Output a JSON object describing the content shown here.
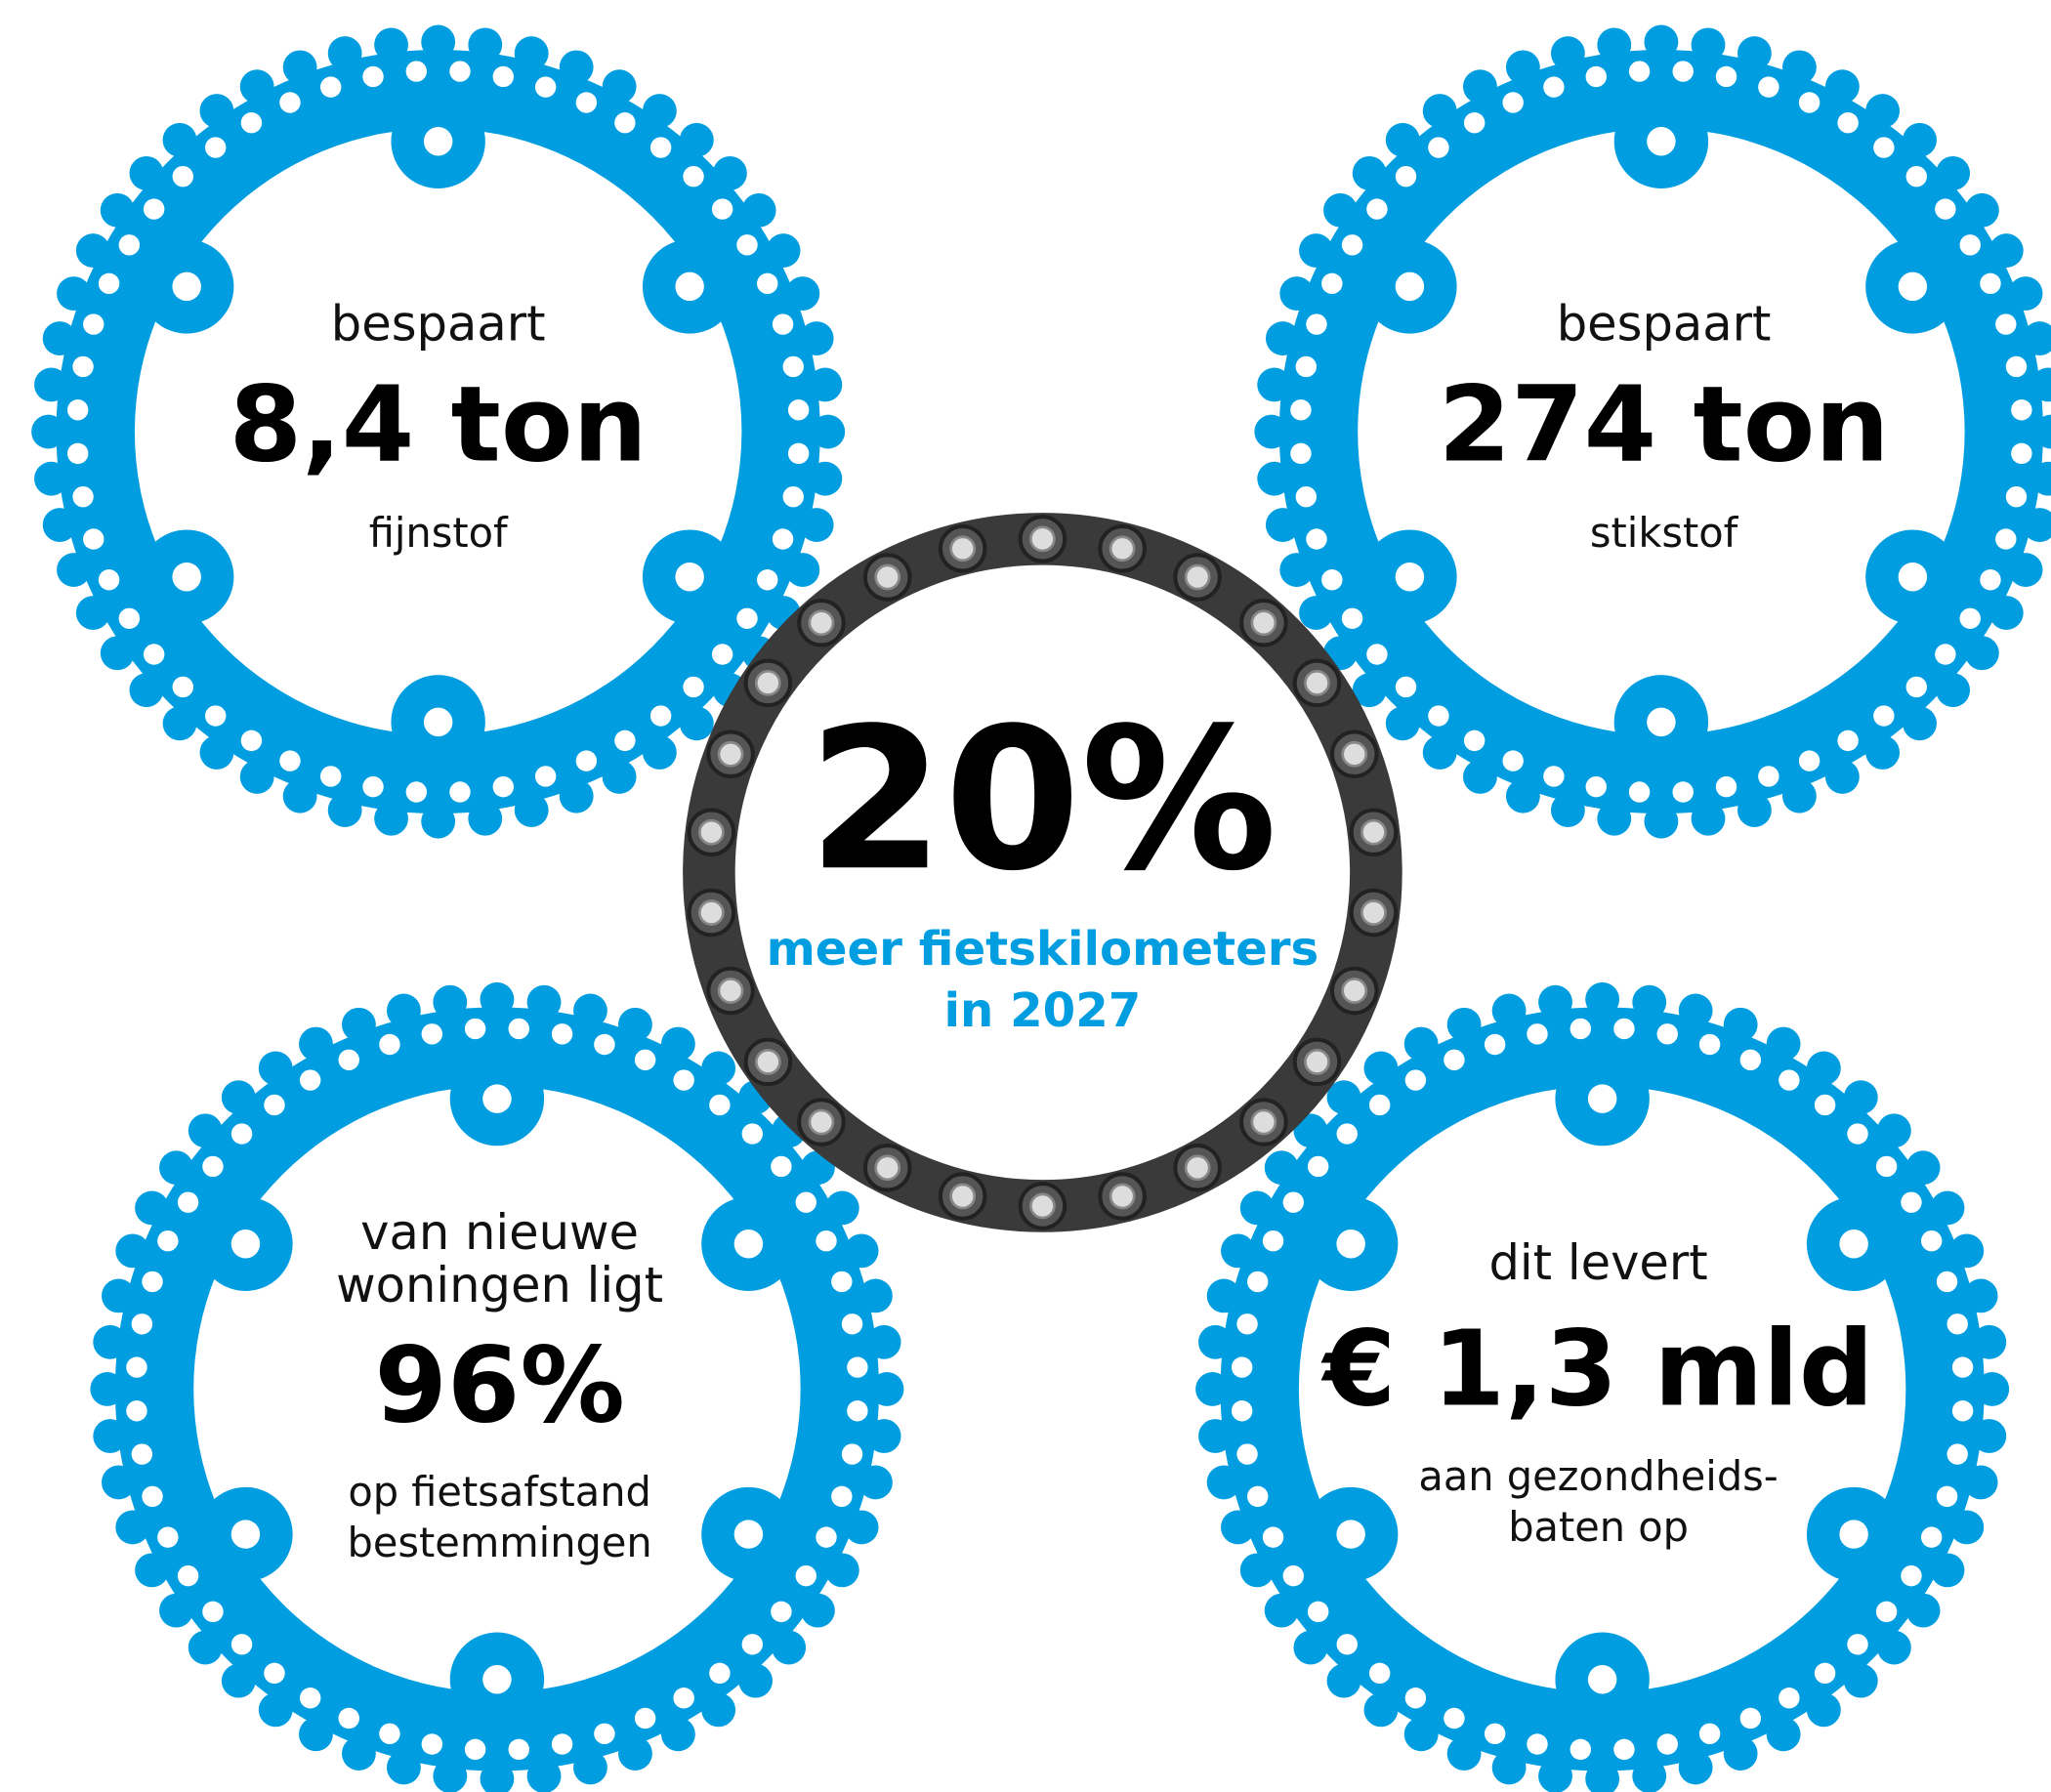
{
  "center": {
    "value": "20%",
    "lines": [
      "meer fietskilometers",
      "in 2027"
    ]
  },
  "rings": [
    {
      "top": [
        "bespaart"
      ],
      "value": "8,4 ton",
      "bottom": [
        "fijnstof"
      ]
    },
    {
      "top": [
        "bespaart"
      ],
      "value": "274 ton",
      "bottom": [
        "stikstof"
      ]
    },
    {
      "top": [
        "van nieuwe",
        "woningen ligt"
      ],
      "value": "96%",
      "bottom": [
        "op fietsafstand",
        "bestemmingen"
      ]
    },
    {
      "top": [
        "dit levert"
      ],
      "value": "€ 1,3 mld",
      "bottom": [
        "aan gezondheids-",
        "baten op"
      ]
    }
  ]
}
